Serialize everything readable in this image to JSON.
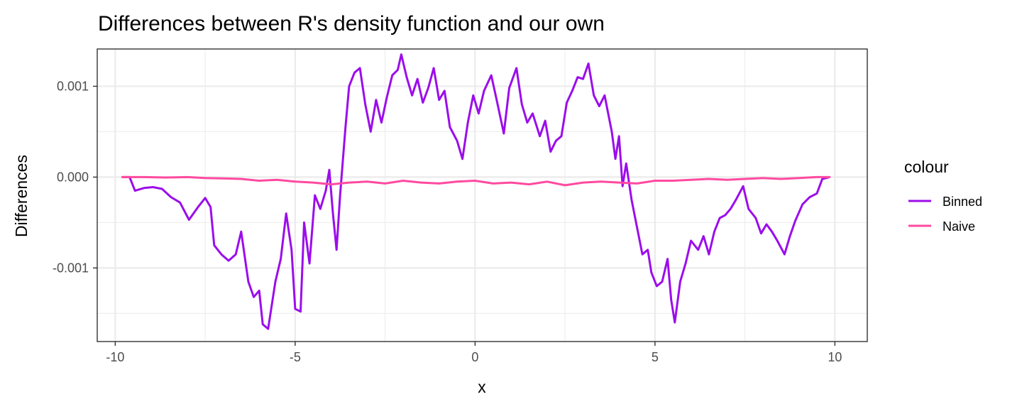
{
  "chart_data": {
    "type": "line",
    "title": "Differences between R's density function and our own",
    "xlabel": "x",
    "ylabel": "Differences",
    "xlim": [
      -10.5,
      10.9
    ],
    "ylim": [
      -0.00181,
      0.00141
    ],
    "x_ticks": [
      -10,
      -5,
      0,
      5,
      10
    ],
    "x_tick_labels": [
      "-10",
      "-5",
      "0",
      "5",
      "10"
    ],
    "y_ticks": [
      -0.001,
      0.0,
      0.001
    ],
    "y_tick_labels": [
      "-0.001",
      "0.000",
      "0.001"
    ],
    "grid": true,
    "legend": {
      "title": "colour",
      "position": "right"
    },
    "series": [
      {
        "name": "Binned",
        "color": "#9B0DEB",
        "points": [
          [
            -9.8,
            0.0
          ],
          [
            -9.6,
            0.0
          ],
          [
            -9.45,
            -0.00015
          ],
          [
            -9.2,
            -0.00012
          ],
          [
            -8.95,
            -0.00011
          ],
          [
            -8.7,
            -0.00013
          ],
          [
            -8.45,
            -0.00022
          ],
          [
            -8.2,
            -0.00028
          ],
          [
            -7.95,
            -0.00047
          ],
          [
            -7.7,
            -0.00033
          ],
          [
            -7.5,
            -0.00023
          ],
          [
            -7.35,
            -0.00033
          ],
          [
            -7.25,
            -0.00075
          ],
          [
            -7.05,
            -0.00085
          ],
          [
            -6.85,
            -0.00092
          ],
          [
            -6.65,
            -0.00085
          ],
          [
            -6.5,
            -0.0006
          ],
          [
            -6.3,
            -0.00115
          ],
          [
            -6.15,
            -0.00132
          ],
          [
            -6.0,
            -0.00125
          ],
          [
            -5.9,
            -0.00162
          ],
          [
            -5.75,
            -0.00167
          ],
          [
            -5.55,
            -0.00115
          ],
          [
            -5.4,
            -0.0009
          ],
          [
            -5.25,
            -0.0004
          ],
          [
            -5.1,
            -0.0008
          ],
          [
            -5.0,
            -0.00145
          ],
          [
            -4.85,
            -0.00148
          ],
          [
            -4.75,
            -0.0005
          ],
          [
            -4.6,
            -0.00095
          ],
          [
            -4.45,
            -0.0002
          ],
          [
            -4.3,
            -0.00035
          ],
          [
            -4.15,
            -0.00015
          ],
          [
            -4.05,
            8e-05
          ],
          [
            -3.95,
            -0.0004
          ],
          [
            -3.85,
            -0.0008
          ],
          [
            -3.75,
            -0.0002
          ],
          [
            -3.6,
            0.00055
          ],
          [
            -3.5,
            0.001
          ],
          [
            -3.35,
            0.00115
          ],
          [
            -3.2,
            0.0012
          ],
          [
            -3.05,
            0.0008
          ],
          [
            -2.9,
            0.0005
          ],
          [
            -2.75,
            0.00085
          ],
          [
            -2.6,
            0.0006
          ],
          [
            -2.45,
            0.00088
          ],
          [
            -2.3,
            0.00112
          ],
          [
            -2.15,
            0.00118
          ],
          [
            -2.05,
            0.00135
          ],
          [
            -1.9,
            0.0011
          ],
          [
            -1.75,
            0.0009
          ],
          [
            -1.6,
            0.00108
          ],
          [
            -1.45,
            0.00082
          ],
          [
            -1.3,
            0.00098
          ],
          [
            -1.15,
            0.0012
          ],
          [
            -1.0,
            0.00085
          ],
          [
            -0.85,
            0.00095
          ],
          [
            -0.7,
            0.00055
          ],
          [
            -0.5,
            0.0004
          ],
          [
            -0.35,
            0.0002
          ],
          [
            -0.2,
            0.0006
          ],
          [
            -0.05,
            0.0009
          ],
          [
            0.1,
            0.0007
          ],
          [
            0.25,
            0.00095
          ],
          [
            0.45,
            0.00112
          ],
          [
            0.6,
            0.00085
          ],
          [
            0.8,
            0.00048
          ],
          [
            0.95,
            0.00098
          ],
          [
            1.15,
            0.0012
          ],
          [
            1.3,
            0.0008
          ],
          [
            1.45,
            0.0006
          ],
          [
            1.6,
            0.0007
          ],
          [
            1.8,
            0.00045
          ],
          [
            1.95,
            0.00062
          ],
          [
            2.1,
            0.00028
          ],
          [
            2.25,
            0.0004
          ],
          [
            2.4,
            0.00045
          ],
          [
            2.55,
            0.00082
          ],
          [
            2.7,
            0.00095
          ],
          [
            2.85,
            0.0011
          ],
          [
            3.0,
            0.00108
          ],
          [
            3.15,
            0.00125
          ],
          [
            3.3,
            0.0009
          ],
          [
            3.45,
            0.00078
          ],
          [
            3.6,
            0.0009
          ],
          [
            3.8,
            0.0005
          ],
          [
            3.9,
            0.0002
          ],
          [
            4.0,
            0.00045
          ],
          [
            4.1,
            -0.0001
          ],
          [
            4.2,
            0.00015
          ],
          [
            4.35,
            -0.00025
          ],
          [
            4.5,
            -0.00055
          ],
          [
            4.65,
            -0.00085
          ],
          [
            4.8,
            -0.0008
          ],
          [
            4.9,
            -0.00105
          ],
          [
            5.05,
            -0.0012
          ],
          [
            5.2,
            -0.00115
          ],
          [
            5.35,
            -0.0009
          ],
          [
            5.45,
            -0.00135
          ],
          [
            5.55,
            -0.0016
          ],
          [
            5.7,
            -0.00115
          ],
          [
            5.85,
            -0.00095
          ],
          [
            6.0,
            -0.0007
          ],
          [
            6.2,
            -0.0008
          ],
          [
            6.35,
            -0.00065
          ],
          [
            6.5,
            -0.00085
          ],
          [
            6.65,
            -0.0006
          ],
          [
            6.8,
            -0.00045
          ],
          [
            6.95,
            -0.00042
          ],
          [
            7.1,
            -0.00035
          ],
          [
            7.25,
            -0.00025
          ],
          [
            7.45,
            -0.0001
          ],
          [
            7.6,
            -0.00035
          ],
          [
            7.8,
            -0.00045
          ],
          [
            7.95,
            -0.00062
          ],
          [
            8.1,
            -0.00052
          ],
          [
            8.25,
            -0.0006
          ],
          [
            8.4,
            -0.0007
          ],
          [
            8.6,
            -0.00085
          ],
          [
            8.75,
            -0.00065
          ],
          [
            8.9,
            -0.00048
          ],
          [
            9.1,
            -0.0003
          ],
          [
            9.3,
            -0.00022
          ],
          [
            9.5,
            -0.00018
          ],
          [
            9.65,
            -2e-05
          ],
          [
            9.85,
            0.0
          ]
        ]
      },
      {
        "name": "Naive",
        "color": "#FF4AA0",
        "points": [
          [
            -9.8,
            0.0
          ],
          [
            -9.2,
            0.0
          ],
          [
            -8.6,
            -5e-06
          ],
          [
            -8.0,
            0.0
          ],
          [
            -7.5,
            -1e-05
          ],
          [
            -7.0,
            -1.5e-05
          ],
          [
            -6.5,
            -2e-05
          ],
          [
            -6.0,
            -4e-05
          ],
          [
            -5.5,
            -3e-05
          ],
          [
            -5.0,
            -5e-05
          ],
          [
            -4.5,
            -6e-05
          ],
          [
            -4.0,
            -8e-05
          ],
          [
            -3.5,
            -6e-05
          ],
          [
            -3.0,
            -5e-05
          ],
          [
            -2.5,
            -7e-05
          ],
          [
            -2.0,
            -4e-05
          ],
          [
            -1.5,
            -6e-05
          ],
          [
            -1.0,
            -7e-05
          ],
          [
            -0.5,
            -5e-05
          ],
          [
            0.0,
            -4e-05
          ],
          [
            0.5,
            -7e-05
          ],
          [
            1.0,
            -6e-05
          ],
          [
            1.5,
            -8e-05
          ],
          [
            2.0,
            -5e-05
          ],
          [
            2.5,
            -9e-05
          ],
          [
            3.0,
            -6e-05
          ],
          [
            3.5,
            -5e-05
          ],
          [
            4.0,
            -6e-05
          ],
          [
            4.5,
            -7e-05
          ],
          [
            5.0,
            -4e-05
          ],
          [
            5.5,
            -4e-05
          ],
          [
            6.0,
            -3e-05
          ],
          [
            6.5,
            -2e-05
          ],
          [
            7.0,
            -3e-05
          ],
          [
            7.5,
            -2e-05
          ],
          [
            8.0,
            -1e-05
          ],
          [
            8.5,
            -2e-05
          ],
          [
            9.0,
            -1e-05
          ],
          [
            9.5,
            0.0
          ],
          [
            9.85,
            0.0
          ]
        ]
      }
    ]
  }
}
